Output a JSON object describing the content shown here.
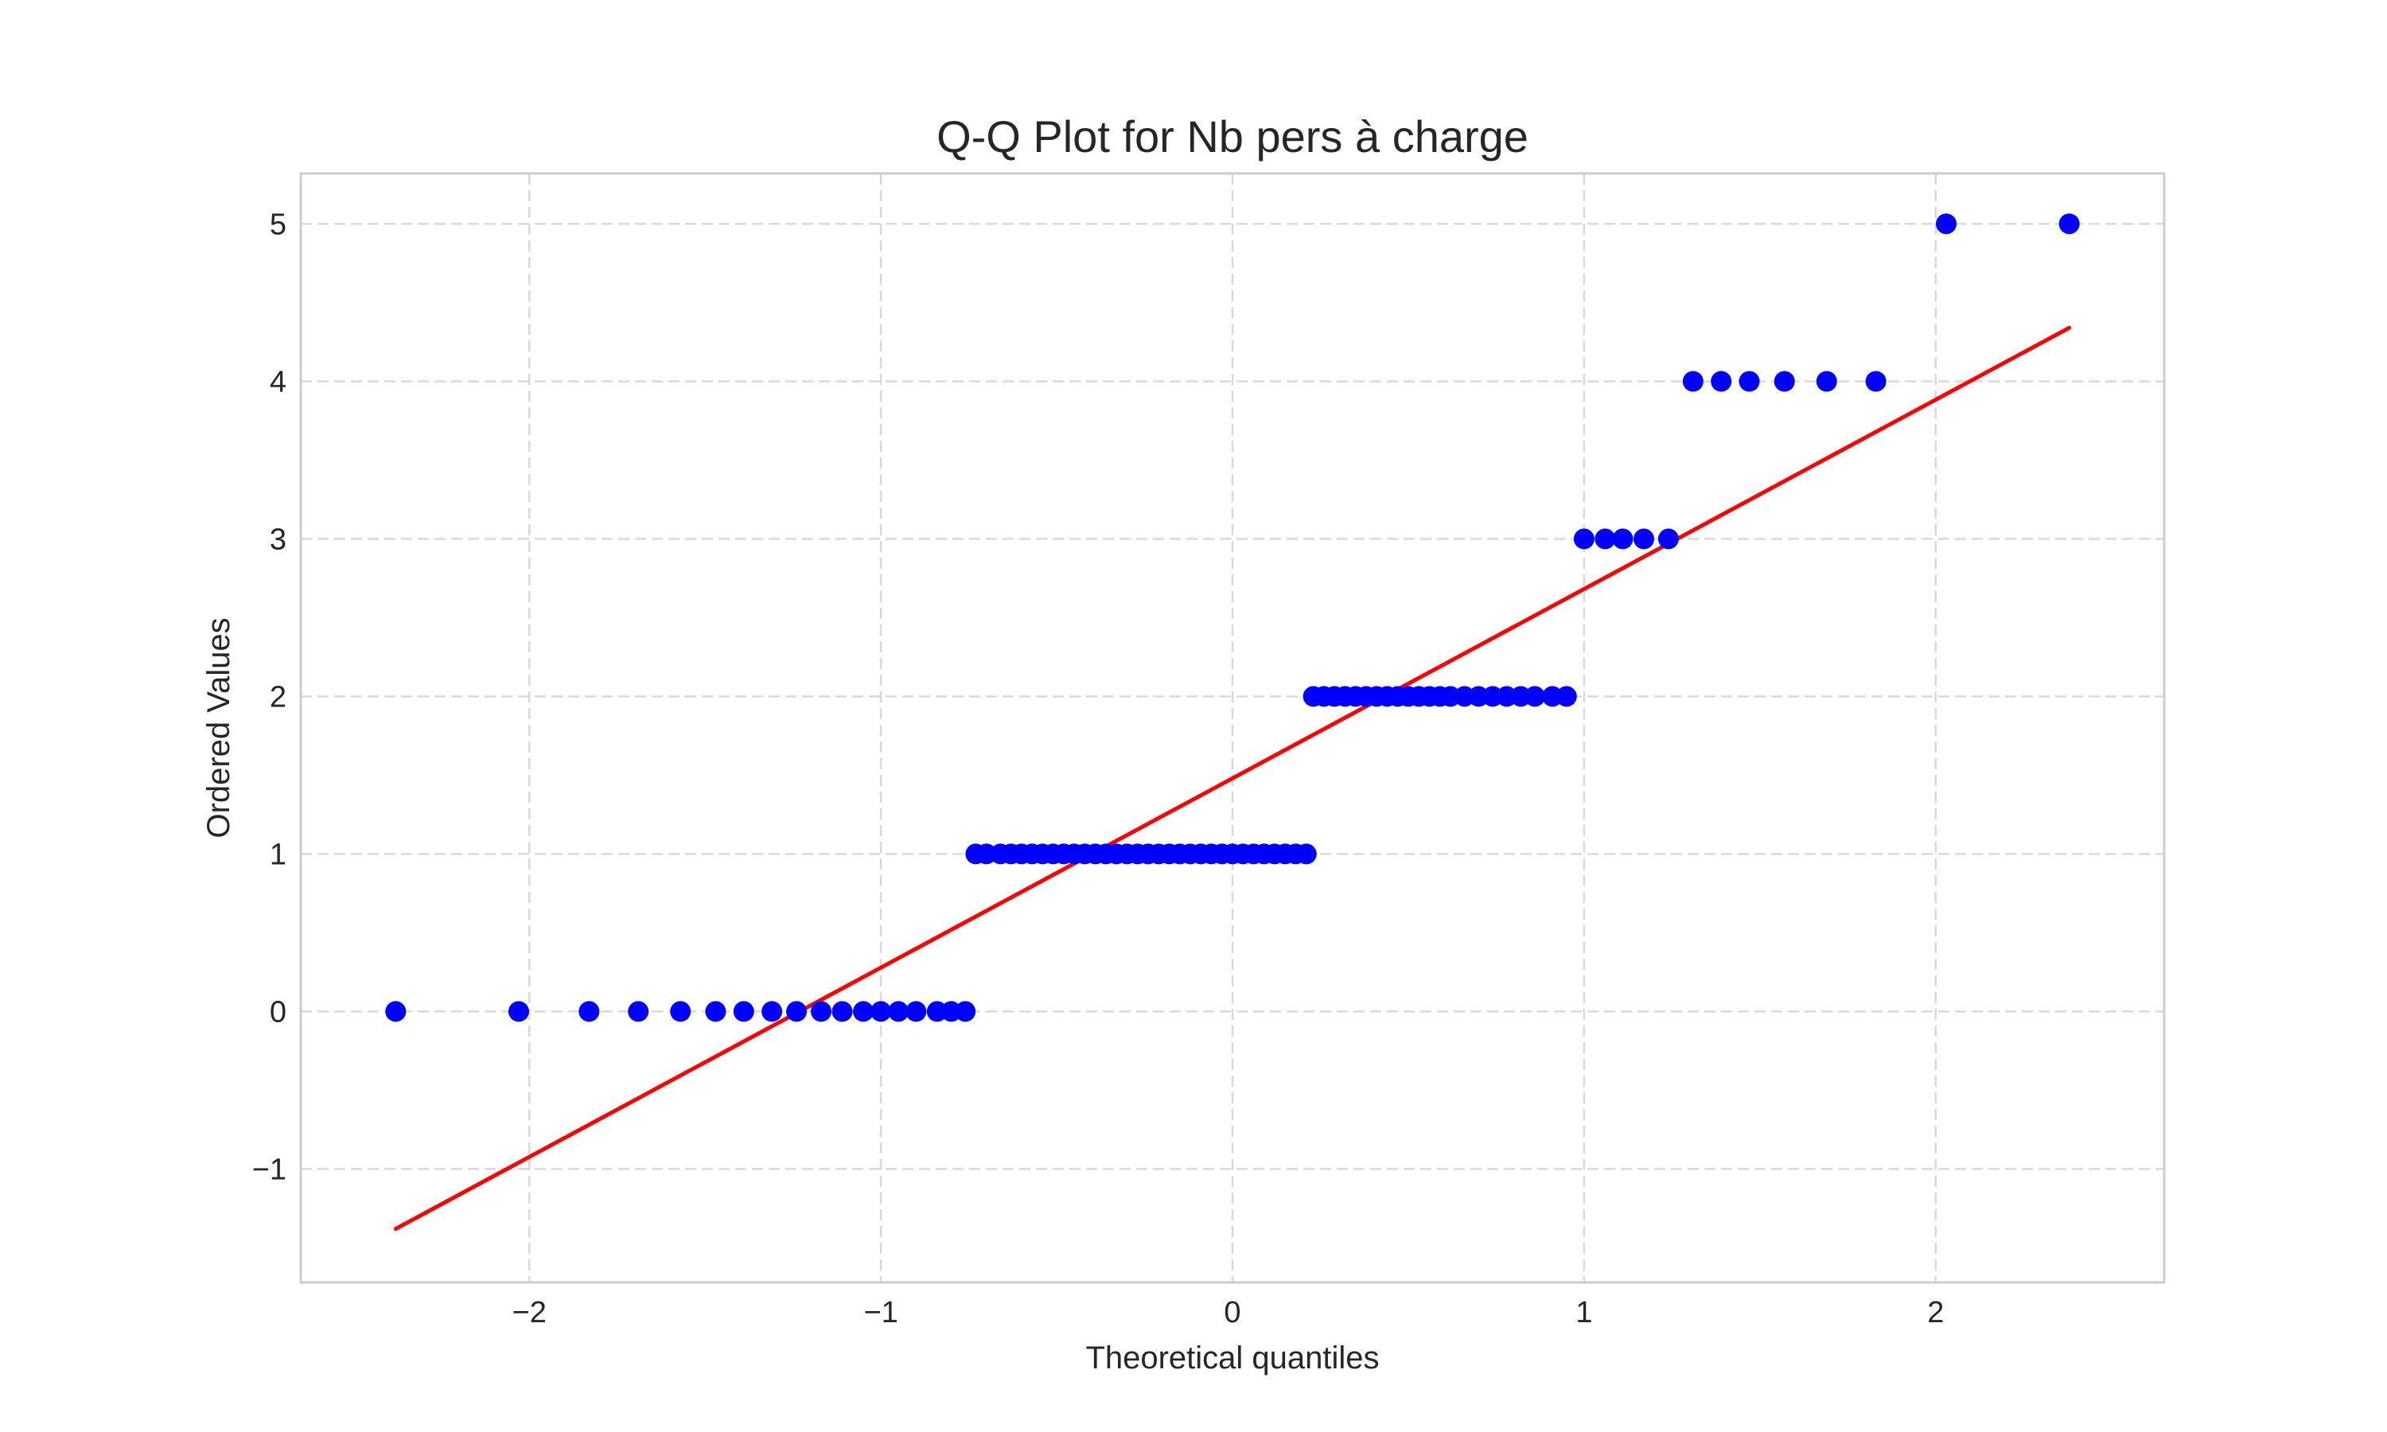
{
  "chart_data": {
    "type": "scatter",
    "title": "Q-Q Plot for Nb pers à charge",
    "xlabel": "Theoretical quantiles",
    "ylabel": "Ordered Values",
    "xlim": [
      -2.65,
      2.65
    ],
    "ylim": [
      -1.72,
      5.32
    ],
    "xticks": [
      -2,
      -1,
      0,
      1,
      2
    ],
    "yticks": [
      -1,
      0,
      1,
      2,
      3,
      4,
      5
    ],
    "xtick_labels": [
      "−2",
      "−1",
      "0",
      "1",
      "2"
    ],
    "ytick_labels": [
      "−1",
      "0",
      "1",
      "2",
      "3",
      "4",
      "5"
    ],
    "grid": true,
    "series": [
      {
        "kind": "points",
        "color": "#0000ff",
        "x": [
          -2.38,
          -2.03,
          -1.83,
          -1.69,
          -1.57,
          -1.47,
          -1.39,
          -1.31,
          -1.24,
          -1.17,
          -1.11,
          -1.05,
          -1.0,
          -0.95,
          -0.9,
          -0.84,
          -0.8,
          -0.76,
          -0.73,
          -0.7,
          -0.66,
          -0.63,
          -0.6,
          -0.57,
          -0.54,
          -0.51,
          -0.48,
          -0.45,
          -0.42,
          -0.39,
          -0.36,
          -0.33,
          -0.3,
          -0.27,
          -0.24,
          -0.21,
          -0.18,
          -0.15,
          -0.12,
          -0.09,
          -0.06,
          -0.03,
          0.0,
          0.03,
          0.06,
          0.09,
          0.12,
          0.15,
          0.18,
          0.21,
          0.23,
          0.26,
          0.29,
          0.32,
          0.35,
          0.38,
          0.41,
          0.44,
          0.47,
          0.5,
          0.53,
          0.56,
          0.59,
          0.62,
          0.66,
          0.7,
          0.74,
          0.78,
          0.82,
          0.86,
          0.91,
          0.95,
          1.0,
          1.06,
          1.11,
          1.17,
          1.24,
          1.31,
          1.39,
          1.47,
          1.57,
          1.69,
          1.83,
          2.03,
          2.38
        ],
        "y": [
          0,
          0,
          0,
          0,
          0,
          0,
          0,
          0,
          0,
          0,
          0,
          0,
          0,
          0,
          0,
          0,
          0,
          0,
          1,
          1,
          1,
          1,
          1,
          1,
          1,
          1,
          1,
          1,
          1,
          1,
          1,
          1,
          1,
          1,
          1,
          1,
          1,
          1,
          1,
          1,
          1,
          1,
          1,
          1,
          1,
          1,
          1,
          1,
          1,
          1,
          2,
          2,
          2,
          2,
          2,
          2,
          2,
          2,
          2,
          2,
          2,
          2,
          2,
          2,
          2,
          2,
          2,
          2,
          2,
          2,
          2,
          2,
          3,
          3,
          3,
          3,
          3,
          4,
          4,
          4,
          4,
          4,
          4,
          5,
          5
        ]
      },
      {
        "kind": "line",
        "color": "#ff0000",
        "x": [
          -2.38,
          2.38
        ],
        "y": [
          -1.38,
          4.34
        ]
      }
    ]
  }
}
